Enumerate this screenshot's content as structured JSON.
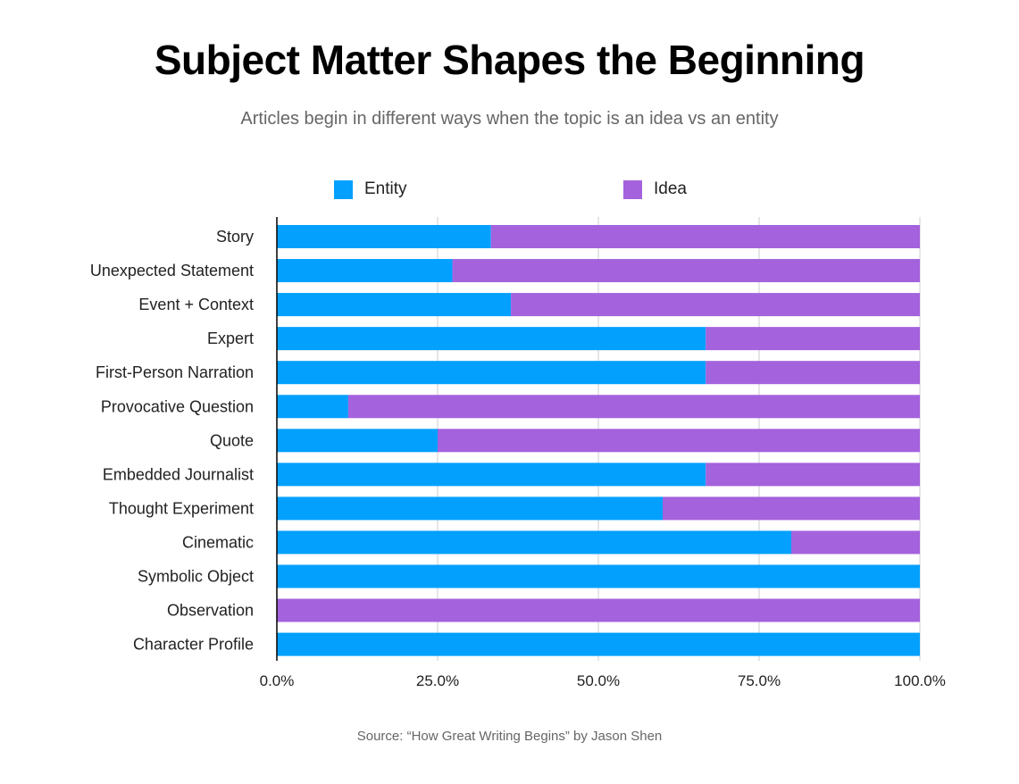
{
  "title": "Subject Matter Shapes the Beginning",
  "subtitle": "Articles begin in different ways when the topic is an idea vs an entity",
  "source": "Source: “How Great Writing Begins” by Jason Shen",
  "colors": {
    "entity": "#03a0fe",
    "idea": "#a462dd",
    "grid": "#cccccc",
    "axis": "#000000"
  },
  "chart_data": {
    "type": "bar",
    "orientation": "horizontal",
    "stacked": "percent",
    "categories": [
      "Story",
      "Unexpected Statement",
      "Event + Context",
      "Expert",
      "First-Person Narration",
      "Provocative Question",
      "Quote",
      "Embedded Journalist",
      "Thought Experiment",
      "Cinematic",
      "Symbolic Object",
      "Observation",
      "Character Profile"
    ],
    "series": [
      {
        "name": "Entity",
        "values": [
          33.3,
          27.3,
          36.4,
          66.7,
          66.7,
          11.1,
          25.0,
          66.7,
          60.0,
          80.0,
          100.0,
          0.0,
          100.0
        ]
      },
      {
        "name": "Idea",
        "values": [
          66.7,
          72.7,
          63.6,
          33.3,
          33.3,
          88.9,
          75.0,
          33.3,
          40.0,
          20.0,
          0.0,
          100.0,
          0.0
        ]
      }
    ],
    "x_ticks": [
      "0.0%",
      "25.0%",
      "50.0%",
      "75.0%",
      "100.0%"
    ],
    "xlim": [
      0,
      100
    ],
    "grid": true,
    "legend_position": "top"
  }
}
